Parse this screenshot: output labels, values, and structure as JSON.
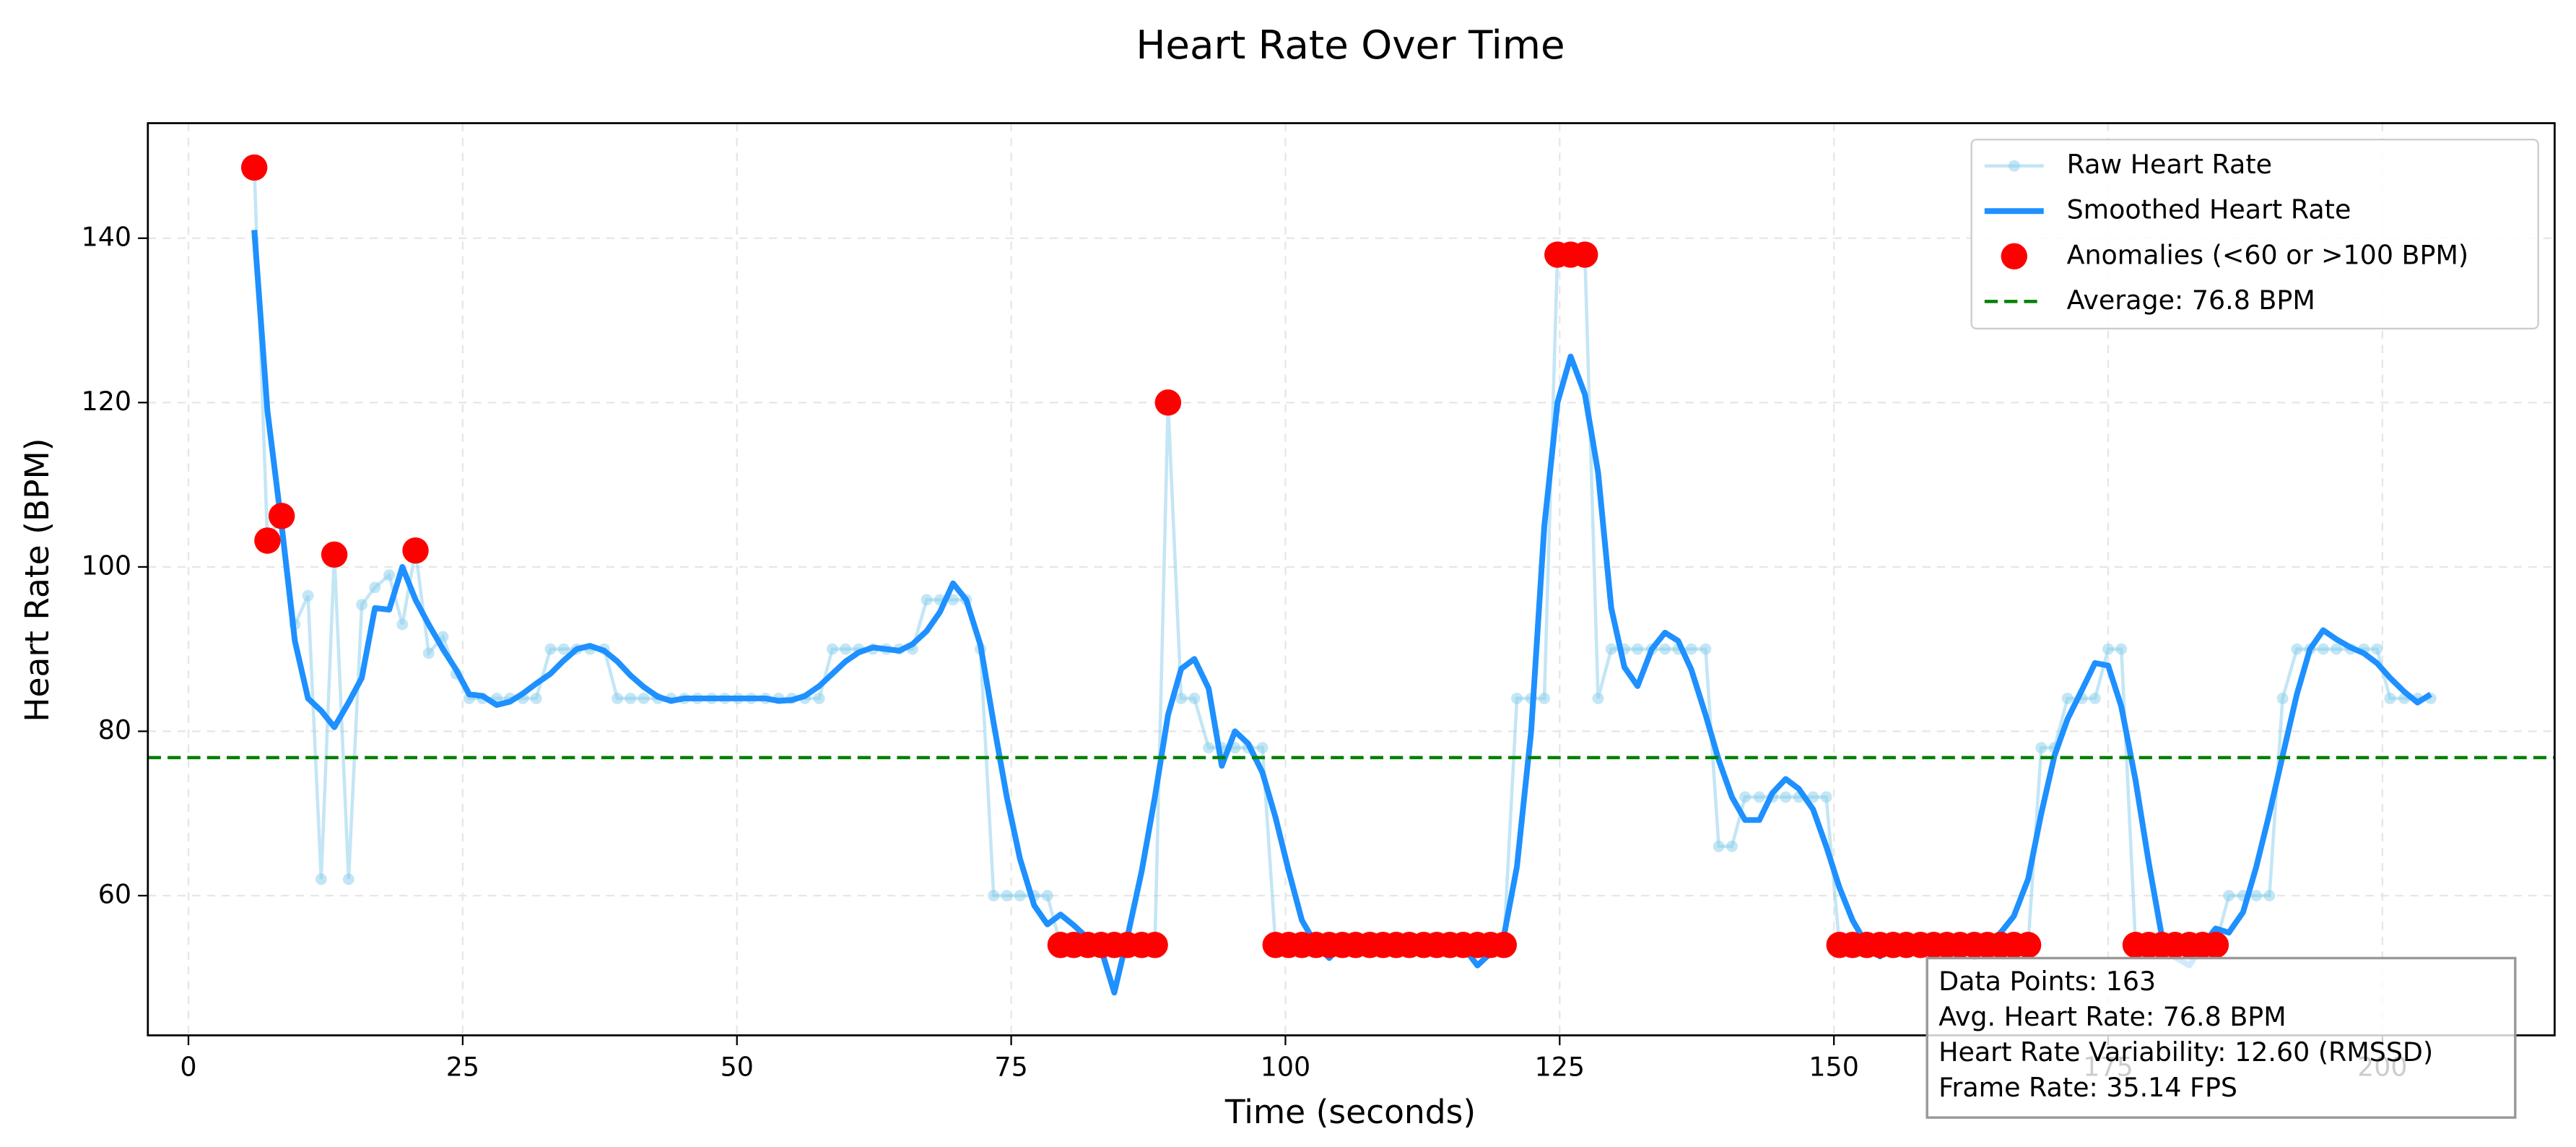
{
  "chart_data": {
    "type": "line",
    "title": "Heart Rate Over Time",
    "xlabel": "Time (seconds)",
    "ylabel": "Heart Rate (BPM)",
    "x": [
      6.0,
      7.2,
      8.5,
      9.7,
      10.9,
      12.1,
      13.3,
      14.6,
      15.8,
      17.0,
      18.3,
      19.5,
      20.7,
      21.9,
      23.2,
      24.4,
      25.6,
      26.8,
      28.1,
      29.3,
      30.5,
      31.7,
      33.0,
      34.2,
      35.4,
      36.6,
      37.9,
      39.1,
      40.3,
      41.5,
      42.8,
      44.0,
      45.2,
      46.4,
      47.7,
      48.9,
      50.1,
      51.3,
      52.6,
      53.8,
      55.0,
      56.2,
      57.5,
      58.7,
      59.9,
      61.1,
      62.4,
      63.6,
      64.8,
      66.0,
      67.3,
      68.5,
      69.7,
      70.9,
      72.2,
      73.4,
      74.6,
      75.8,
      77.1,
      78.3,
      79.5,
      80.7,
      82.0,
      83.2,
      84.4,
      85.6,
      86.9,
      88.1,
      89.3,
      90.5,
      91.7,
      93.0,
      94.2,
      95.4,
      96.6,
      97.9,
      99.1,
      100.3,
      101.5,
      102.8,
      104.0,
      105.2,
      106.4,
      107.7,
      108.9,
      110.1,
      111.3,
      112.6,
      113.8,
      115.0,
      116.2,
      117.5,
      118.7,
      119.9,
      121.1,
      122.4,
      123.6,
      124.8,
      126.0,
      127.3,
      128.5,
      129.7,
      130.9,
      132.1,
      133.4,
      134.6,
      135.8,
      137.0,
      138.3,
      139.5,
      140.7,
      141.9,
      143.2,
      144.4,
      145.6,
      146.8,
      148.1,
      149.3,
      150.5,
      151.7,
      153.0,
      154.2,
      155.4,
      156.6,
      157.9,
      159.1,
      160.3,
      161.5,
      162.8,
      164.0,
      165.2,
      166.4,
      167.7,
      168.9,
      170.1,
      171.3,
      172.6,
      173.8,
      175.0,
      176.2,
      177.5,
      178.7,
      179.9,
      181.1,
      182.4,
      183.6,
      184.8,
      186.0,
      187.3,
      188.5,
      189.7,
      190.9,
      192.2,
      193.4,
      194.6,
      195.8,
      197.1,
      198.3,
      199.5,
      200.7,
      202.0,
      203.2,
      204.4
    ],
    "series": [
      {
        "name": "Raw Heart Rate",
        "color": "#87ceeb",
        "values": [
          148.6,
          103.2,
          106.2,
          93,
          96.5,
          62,
          101.5,
          62,
          95.4,
          97.5,
          99,
          93,
          102,
          89.5,
          91.5,
          87,
          84,
          84,
          84,
          84,
          84,
          84,
          90,
          90,
          90,
          90,
          90,
          84,
          84,
          84,
          84,
          84,
          84,
          84,
          84,
          84,
          84,
          84,
          84,
          84,
          84,
          84,
          84,
          90,
          90,
          90,
          90,
          90,
          90,
          90,
          96,
          96,
          96,
          96,
          90,
          60,
          60,
          60,
          60,
          60,
          54,
          54,
          54,
          54,
          54,
          54,
          54,
          54,
          120,
          84,
          84,
          78,
          78,
          78,
          78,
          78,
          54,
          54,
          54,
          54,
          54,
          54,
          54,
          54,
          54,
          54,
          54,
          54,
          54,
          54,
          54,
          54,
          54,
          54,
          84,
          84,
          84,
          138,
          138,
          138,
          84,
          90,
          90,
          90,
          90,
          90,
          90,
          90,
          90,
          66,
          66,
          72,
          72,
          72,
          72,
          72,
          72,
          72,
          54,
          54,
          54,
          54,
          54,
          54,
          54,
          54,
          54,
          54,
          54,
          54,
          54,
          54,
          54,
          78,
          78,
          84,
          84,
          84,
          90,
          90,
          54,
          54,
          54,
          54,
          54,
          54,
          54,
          60,
          60,
          60,
          60,
          84,
          90,
          90,
          90,
          90,
          90,
          90,
          90,
          84,
          84,
          84,
          84
        ]
      },
      {
        "name": "Smoothed Heart Rate",
        "color": "#1e90ff",
        "values": [
          141,
          119,
          105,
          91,
          84,
          82.5,
          80.5,
          83.5,
          86.5,
          95,
          94.8,
          100,
          96,
          93,
          90,
          87.5,
          84.5,
          84.3,
          83.2,
          83.6,
          84.6,
          85.8,
          87,
          88.6,
          90,
          90.4,
          89.8,
          88.5,
          86.8,
          85.4,
          84.2,
          83.7,
          84,
          84,
          84,
          84,
          84,
          84,
          84,
          83.7,
          83.8,
          84.3,
          85.5,
          87,
          88.5,
          89.6,
          90.2,
          90,
          89.8,
          90.6,
          92.2,
          94.5,
          98,
          96,
          90.5,
          81,
          72,
          64.5,
          58.8,
          56.5,
          57.7,
          56.4,
          54.8,
          53.5,
          48.2,
          55,
          63,
          72,
          82,
          87.6,
          88.8,
          85.2,
          75.8,
          80,
          78.5,
          75,
          69.5,
          63,
          57,
          54,
          52.4,
          54.3,
          54,
          54,
          54,
          54,
          54,
          54,
          54,
          53.5,
          53.8,
          51.5,
          53,
          55,
          63.5,
          80,
          105,
          120,
          125.6,
          121,
          111.5,
          95,
          87.8,
          85.5,
          90,
          92,
          91,
          87.5,
          82,
          76.5,
          72,
          69.2,
          69.2,
          72.5,
          74.2,
          73,
          70.5,
          66,
          61,
          57,
          54,
          52.6,
          54,
          54,
          54,
          54,
          54,
          53.8,
          52.5,
          54,
          55.5,
          57.5,
          62,
          70,
          77,
          81.5,
          85,
          88.3,
          88,
          83,
          74,
          64,
          55,
          52.5,
          51.5,
          54,
          56,
          55.5,
          58,
          63.5,
          70,
          77,
          84.5,
          90,
          92.3,
          91.2,
          90.2,
          89.5,
          88.3,
          86.5,
          84.8,
          83.5,
          84.5
        ]
      }
    ],
    "anomalies": {
      "name": "Anomalies (<60 or >100 BPM)",
      "color": "#ff0000",
      "x": [
        6.0,
        7.2,
        8.5,
        13.3,
        20.7,
        79.5,
        80.7,
        82.0,
        83.2,
        84.4,
        85.6,
        86.9,
        88.1,
        89.3,
        99.1,
        100.3,
        101.5,
        102.8,
        104.0,
        105.2,
        106.4,
        107.7,
        108.9,
        110.1,
        111.3,
        112.6,
        113.8,
        115.0,
        116.2,
        117.5,
        118.7,
        119.9,
        124.8,
        126.0,
        127.3,
        150.5,
        151.7,
        153.0,
        154.2,
        155.4,
        156.6,
        157.9,
        159.1,
        160.3,
        161.5,
        162.8,
        164.0,
        165.2,
        166.4,
        167.7,
        177.5,
        178.7,
        179.9,
        181.1,
        182.4,
        183.6,
        184.8
      ],
      "values": [
        148.6,
        103.2,
        106.2,
        101.5,
        102,
        54,
        54,
        54,
        54,
        54,
        54,
        54,
        54,
        120,
        54,
        54,
        54,
        54,
        54,
        54,
        54,
        54,
        54,
        54,
        54,
        54,
        54,
        54,
        54,
        54,
        54,
        54,
        138,
        138,
        138,
        54,
        54,
        54,
        54,
        54,
        54,
        54,
        54,
        54,
        54,
        54,
        54,
        54,
        54,
        54,
        54,
        54,
        54,
        54,
        54,
        54,
        54
      ]
    },
    "average": {
      "name": "Average: 76.8 BPM",
      "color": "#008000",
      "value": 76.8
    },
    "xlim": [
      -3.7,
      215.7
    ],
    "ylim": [
      43,
      154
    ],
    "xticks": [
      0,
      25,
      50,
      75,
      100,
      125,
      150,
      175,
      200
    ],
    "yticks": [
      60,
      80,
      100,
      120,
      140
    ],
    "grid": true,
    "legend": "upper right",
    "info_box": [
      "Data Points: 163",
      "Avg. Heart Rate: 76.8 BPM",
      "Heart Rate Variability: 12.60 (RMSSD)",
      "Frame Rate: 35.14 FPS"
    ]
  }
}
